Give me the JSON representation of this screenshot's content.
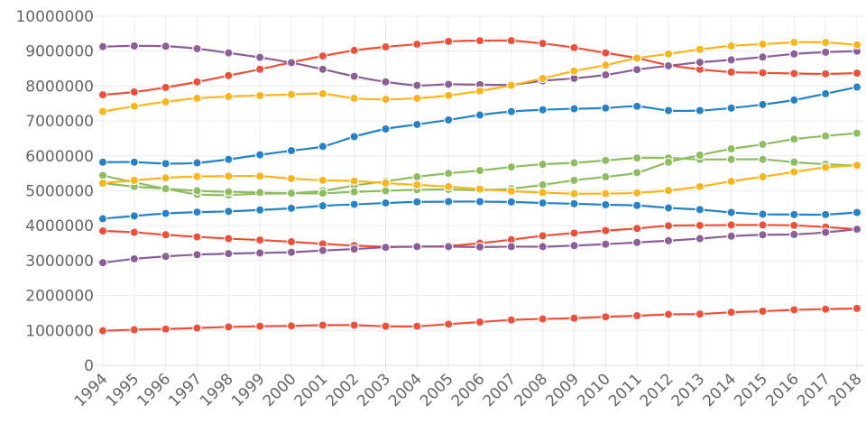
{
  "chart_data": {
    "type": "line",
    "title": "",
    "xlabel": "",
    "ylabel": "",
    "ylim": [
      0,
      10000000
    ],
    "yticks": [
      "0",
      "1000000",
      "2000000",
      "3000000",
      "4000000",
      "5000000",
      "6000000",
      "7000000",
      "8000000",
      "9000000",
      "10000000"
    ],
    "grid": true,
    "x": [
      "1994",
      "1995",
      "1996",
      "1997",
      "1998",
      "1999",
      "2000",
      "2001",
      "2002",
      "2003",
      "2004",
      "2005",
      "2006",
      "2007",
      "2008",
      "2009",
      "2010",
      "2011",
      "2012",
      "2013",
      "2014",
      "2015",
      "2016",
      "2017",
      "2018"
    ],
    "series": [
      {
        "color": "#f04e37",
        "values": [
          7750000,
          7830000,
          7960000,
          8120000,
          8300000,
          8480000,
          8680000,
          8860000,
          9020000,
          9120000,
          9200000,
          9280000,
          9300000,
          9300000,
          9220000,
          9100000,
          8950000,
          8800000,
          8600000,
          8480000,
          8400000,
          8380000,
          8360000,
          8350000,
          8370000
        ]
      },
      {
        "color": "#8c5e97",
        "values": [
          9130000,
          9150000,
          9140000,
          9070000,
          8950000,
          8820000,
          8670000,
          8480000,
          8280000,
          8120000,
          8020000,
          8050000,
          8040000,
          8040000,
          8150000,
          8220000,
          8320000,
          8470000,
          8580000,
          8680000,
          8750000,
          8830000,
          8920000,
          8970000,
          9000000
        ]
      },
      {
        "color": "#fbb518",
        "values": [
          7270000,
          7420000,
          7550000,
          7650000,
          7700000,
          7730000,
          7760000,
          7780000,
          7650000,
          7620000,
          7650000,
          7730000,
          7860000,
          8020000,
          8220000,
          8430000,
          8600000,
          8800000,
          8920000,
          9050000,
          9150000,
          9200000,
          9250000,
          9250000,
          9180000
        ]
      },
      {
        "color": "#2482c9",
        "values": [
          5820000,
          5820000,
          5780000,
          5800000,
          5900000,
          6030000,
          6150000,
          6270000,
          6550000,
          6770000,
          6900000,
          7030000,
          7170000,
          7270000,
          7320000,
          7350000,
          7370000,
          7420000,
          7300000,
          7300000,
          7370000,
          7470000,
          7600000,
          7780000,
          7970000
        ]
      },
      {
        "color": "#8cbd5e",
        "values": [
          5440000,
          5240000,
          5060000,
          4900000,
          4880000,
          4920000,
          4930000,
          5000000,
          5150000,
          5270000,
          5400000,
          5500000,
          5580000,
          5680000,
          5760000,
          5800000,
          5870000,
          5940000,
          5940000,
          5900000,
          5900000,
          5900000,
          5820000,
          5760000,
          5720000
        ]
      },
      {
        "color": "#8cbd5e",
        "values": [
          5220000,
          5120000,
          5060000,
          5000000,
          4970000,
          4950000,
          4930000,
          4930000,
          4970000,
          5000000,
          5030000,
          5040000,
          5020000,
          5060000,
          5170000,
          5300000,
          5400000,
          5520000,
          5820000,
          6020000,
          6200000,
          6330000,
          6480000,
          6570000,
          6650000
        ]
      },
      {
        "color": "#fbb518",
        "values": [
          5220000,
          5300000,
          5370000,
          5410000,
          5420000,
          5420000,
          5350000,
          5300000,
          5280000,
          5220000,
          5170000,
          5120000,
          5050000,
          4990000,
          4950000,
          4920000,
          4920000,
          4940000,
          5010000,
          5120000,
          5270000,
          5400000,
          5540000,
          5670000,
          5730000
        ]
      },
      {
        "color": "#2482c9",
        "values": [
          4200000,
          4280000,
          4350000,
          4390000,
          4410000,
          4450000,
          4500000,
          4570000,
          4610000,
          4650000,
          4680000,
          4690000,
          4690000,
          4680000,
          4650000,
          4630000,
          4600000,
          4580000,
          4510000,
          4460000,
          4380000,
          4330000,
          4320000,
          4320000,
          4380000
        ]
      },
      {
        "color": "#f04e37",
        "values": [
          3850000,
          3810000,
          3740000,
          3680000,
          3630000,
          3590000,
          3540000,
          3480000,
          3430000,
          3400000,
          3400000,
          3420000,
          3500000,
          3600000,
          3710000,
          3790000,
          3860000,
          3920000,
          4000000,
          4010000,
          4020000,
          4020000,
          4010000,
          3960000,
          3900000
        ]
      },
      {
        "color": "#8c5e97",
        "values": [
          2940000,
          3050000,
          3120000,
          3170000,
          3200000,
          3220000,
          3240000,
          3290000,
          3330000,
          3380000,
          3400000,
          3400000,
          3390000,
          3400000,
          3400000,
          3430000,
          3470000,
          3520000,
          3570000,
          3630000,
          3700000,
          3740000,
          3750000,
          3810000,
          3900000
        ]
      },
      {
        "color": "#f04e37",
        "values": [
          990000,
          1020000,
          1040000,
          1070000,
          1100000,
          1120000,
          1130000,
          1150000,
          1150000,
          1120000,
          1120000,
          1180000,
          1240000,
          1300000,
          1330000,
          1350000,
          1390000,
          1420000,
          1460000,
          1470000,
          1520000,
          1550000,
          1590000,
          1610000,
          1630000
        ]
      }
    ]
  }
}
